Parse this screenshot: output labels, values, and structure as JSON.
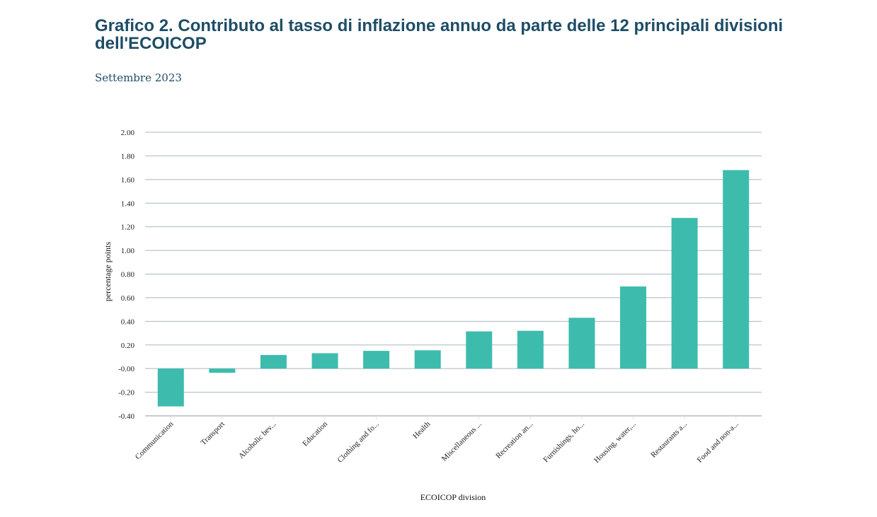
{
  "header": {
    "title": "Grafico 2. Contributo al tasso di inflazione annuo da parte delle 12 principali divisioni dell'ECOICOP",
    "subtitle": "Settembre 2023"
  },
  "colors": {
    "bar": "#3dbcad",
    "grid": "#a9b8bf",
    "title": "#1e4d66"
  },
  "chart_data": {
    "type": "bar",
    "title": "Grafico 2. Contributo al tasso di inflazione annuo da parte delle 12 principali divisioni dell'ECOICOP",
    "subtitle": "Settembre 2023",
    "xlabel": "ECOICOP division",
    "ylabel": "percentage points",
    "ylim": [
      -0.4,
      2.0
    ],
    "yticks": [
      -0.4,
      -0.2,
      0.0,
      0.2,
      0.4,
      0.6,
      0.8,
      1.0,
      1.2,
      1.4,
      1.6,
      1.8,
      2.0
    ],
    "ytick_labels": [
      "-0.40",
      "-0.20",
      "-0.00",
      "0.20",
      "0.40",
      "0.60",
      "0.80",
      "1.00",
      "1.20",
      "1.40",
      "1.60",
      "1.80",
      "2.00"
    ],
    "grid": true,
    "categories": [
      "Communication",
      "Transport",
      "Alcoholic bev...",
      "Education",
      "Clothing and fo...",
      "Health",
      "Miscellaneous ...",
      "Recreation an...",
      "Furnishings, ho...",
      "Housing, water,...",
      "Restaurants a...",
      "Food and non-a..."
    ],
    "values": [
      -0.32,
      -0.035,
      0.115,
      0.13,
      0.15,
      0.155,
      0.315,
      0.32,
      0.43,
      0.695,
      1.275,
      1.68
    ]
  }
}
